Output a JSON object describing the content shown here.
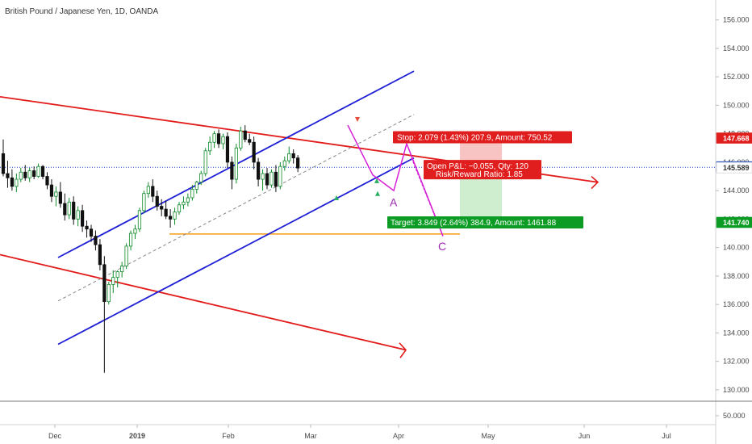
{
  "chart_data": {
    "type": "candlestick",
    "title": "British Pound / Japanese Yen, 1D, OANDA",
    "y_ticks": [
      "156.000",
      "154.000",
      "152.000",
      "150.000",
      "148.000",
      "146.000",
      "144.000",
      "142.000",
      "140.000",
      "138.000",
      "136.000",
      "134.000",
      "132.000",
      "130.000"
    ],
    "y_values": [
      156,
      154,
      152,
      150,
      148,
      146,
      144,
      142,
      140,
      138,
      136,
      134,
      132,
      130
    ],
    "ylim": [
      129.2,
      157.4
    ],
    "volume_tick": "50.000",
    "x_ticks": [
      "Dec",
      "2019",
      "Feb",
      "Mar",
      "Apr",
      "May",
      "Jun",
      "Jul"
    ],
    "x_ticks_bold": [
      false,
      true,
      false,
      false,
      false,
      false,
      false,
      false
    ],
    "price_tags": [
      {
        "label": "147.668",
        "value": 147.668,
        "color": "#e01e1e",
        "text_color": "#ffffff"
      },
      {
        "label": "145.644",
        "value": 145.644,
        "color": "#1a47c9",
        "text_color": "#ffffff"
      },
      {
        "label": "145.589",
        "value": 145.589,
        "color": "#ffffff",
        "text_color": "#333333"
      },
      {
        "label": "141.740",
        "value": 141.74,
        "color": "#0c9c25",
        "text_color": "#ffffff"
      }
    ],
    "current_price": 145.644,
    "position": {
      "entry": 145.589,
      "stop": 147.668,
      "target": 141.74,
      "stop_label": "Stop: 2.079 (1.43%) 207.9, Amount: 750.52",
      "pnl_label": "Open P&L: −0.055, Qty: 120",
      "rr_label": "Risk/Reward Ratio: 1.85",
      "target_label": "Target: 3.849 (2.64%) 384.9, Amount: 1461.88"
    },
    "wave_labels": [
      "A",
      "C"
    ],
    "colors": {
      "up": "#0f8a2a",
      "down": "#111111",
      "channel": "#1f1fd6",
      "trend": "#e21b1b",
      "support": "#f39c12",
      "wave": "#d61fd6",
      "stop_zone": "#f7c3c3",
      "target_zone": "#cfeecf"
    },
    "candles": [
      [
        146.6,
        147.6,
        145.0,
        145.2
      ],
      [
        145.2,
        146.1,
        144.2,
        144.9
      ],
      [
        144.9,
        145.5,
        144.0,
        144.3
      ],
      [
        144.3,
        145.2,
        143.9,
        144.8
      ],
      [
        144.8,
        145.6,
        144.6,
        145.3
      ],
      [
        145.3,
        145.8,
        144.7,
        144.9
      ],
      [
        144.9,
        145.6,
        144.6,
        145.4
      ],
      [
        145.4,
        145.7,
        144.8,
        145.0
      ],
      [
        145.0,
        145.9,
        144.9,
        145.7
      ],
      [
        145.7,
        145.8,
        144.8,
        145.0
      ],
      [
        145.0,
        145.3,
        144.1,
        144.4
      ],
      [
        144.4,
        144.8,
        143.2,
        143.6
      ],
      [
        143.6,
        144.3,
        142.9,
        143.9
      ],
      [
        143.9,
        144.6,
        142.8,
        143.1
      ],
      [
        143.1,
        143.8,
        141.9,
        142.3
      ],
      [
        142.3,
        143.5,
        142.0,
        143.2
      ],
      [
        143.2,
        143.6,
        141.6,
        142.0
      ],
      [
        142.0,
        142.9,
        141.5,
        142.6
      ],
      [
        142.6,
        143.0,
        141.1,
        141.5
      ],
      [
        141.5,
        141.9,
        140.7,
        141.3
      ],
      [
        141.3,
        141.6,
        140.4,
        140.8
      ],
      [
        140.8,
        141.2,
        139.8,
        140.2
      ],
      [
        140.2,
        140.6,
        138.4,
        138.8
      ],
      [
        138.8,
        139.4,
        131.2,
        136.2
      ],
      [
        136.2,
        137.6,
        136.0,
        137.4
      ],
      [
        137.4,
        138.4,
        136.8,
        137.9
      ],
      [
        137.9,
        138.4,
        137.2,
        138.3
      ],
      [
        138.3,
        139.0,
        137.9,
        138.7
      ],
      [
        138.7,
        140.3,
        138.5,
        140.1
      ],
      [
        140.1,
        141.2,
        139.8,
        141.0
      ],
      [
        141.0,
        141.6,
        140.6,
        141.3
      ],
      [
        141.3,
        142.8,
        141.1,
        142.6
      ],
      [
        142.6,
        144.0,
        142.4,
        143.8
      ],
      [
        143.8,
        144.6,
        143.5,
        144.3
      ],
      [
        144.3,
        144.8,
        143.2,
        143.6
      ],
      [
        143.6,
        144.0,
        142.6,
        142.9
      ],
      [
        142.9,
        143.4,
        142.2,
        142.7
      ],
      [
        142.7,
        143.3,
        142.0,
        142.2
      ],
      [
        142.2,
        142.7,
        141.4,
        142.0
      ],
      [
        142.0,
        142.8,
        141.6,
        142.5
      ],
      [
        142.5,
        143.2,
        142.3,
        143.0
      ],
      [
        143.0,
        143.6,
        142.7,
        143.2
      ],
      [
        143.2,
        143.8,
        142.9,
        143.5
      ],
      [
        143.5,
        144.4,
        143.3,
        144.1
      ],
      [
        144.1,
        144.7,
        143.8,
        144.6
      ],
      [
        144.6,
        145.4,
        144.4,
        145.2
      ],
      [
        145.2,
        147.0,
        145.0,
        146.8
      ],
      [
        146.8,
        147.8,
        146.5,
        147.4
      ],
      [
        147.4,
        148.2,
        147.0,
        148.0
      ],
      [
        148.0,
        148.3,
        147.0,
        147.3
      ],
      [
        147.3,
        148.0,
        146.9,
        147.8
      ],
      [
        147.8,
        148.1,
        145.6,
        146.0
      ],
      [
        146.0,
        146.4,
        144.1,
        144.8
      ],
      [
        144.8,
        147.3,
        144.5,
        147.0
      ],
      [
        147.0,
        148.5,
        146.8,
        148.2
      ],
      [
        148.2,
        148.6,
        147.4,
        147.6
      ],
      [
        147.6,
        148.0,
        147.2,
        147.4
      ],
      [
        147.4,
        147.8,
        145.5,
        146.0
      ],
      [
        146.0,
        146.3,
        144.3,
        144.8
      ],
      [
        144.8,
        145.5,
        144.0,
        145.2
      ],
      [
        145.2,
        145.6,
        144.1,
        144.4
      ],
      [
        144.4,
        145.5,
        144.2,
        145.3
      ],
      [
        145.3,
        145.8,
        143.9,
        144.3
      ],
      [
        144.3,
        146.0,
        144.1,
        145.7
      ],
      [
        145.7,
        146.4,
        145.4,
        146.1
      ],
      [
        146.1,
        147.1,
        145.9,
        146.6
      ],
      [
        146.6,
        146.9,
        145.9,
        146.3
      ],
      [
        146.3,
        146.5,
        145.3,
        145.589
      ]
    ]
  }
}
